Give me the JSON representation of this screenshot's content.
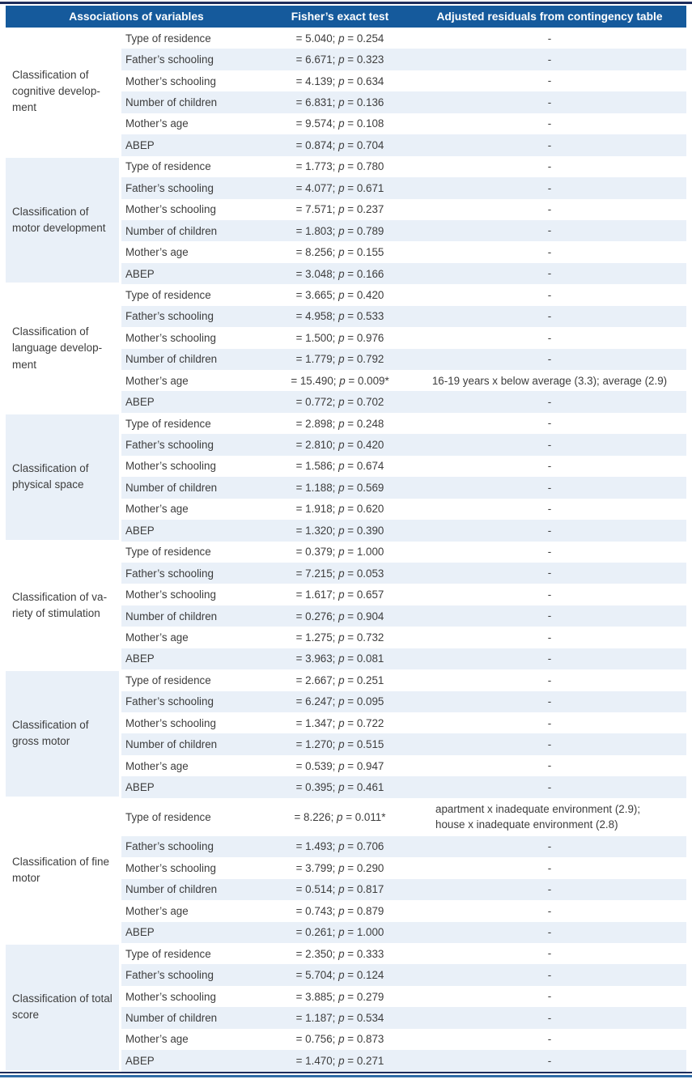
{
  "header": {
    "col_variables": "Associations of variables",
    "col_fisher": "Fisher’s exact test",
    "col_residuals": "Adjusted residuals from contingency table"
  },
  "labels": {
    "p_symbol": "p"
  },
  "colors": {
    "header_bg": "#155a9c",
    "row_stripe": "#e9f0f8",
    "rule_dark": "#1e2d5c",
    "rule_blue": "#2e6ba6",
    "body_text": "#3d3d3d",
    "header_text": "#ffffff"
  },
  "groups": [
    {
      "label": "Classification of cognitive develop­ment",
      "rows": [
        {
          "variable": "Type of residence",
          "stat": "= 5.040;",
          "p": "= 0.254",
          "residual": "-"
        },
        {
          "variable": "Father’s schooling",
          "stat": "= 6.671;",
          "p": "= 0.323",
          "residual": "-"
        },
        {
          "variable": "Mother’s schooling",
          "stat": "= 4.139;",
          "p": "= 0.634",
          "residual": "-"
        },
        {
          "variable": "Number of children",
          "stat": "= 6.831;",
          "p": "= 0.136",
          "residual": "-"
        },
        {
          "variable": "Mother’s age",
          "stat": "= 9.574;",
          "p": "= 0.108",
          "residual": "-"
        },
        {
          "variable": "ABEP",
          "stat": "= 0.874;",
          "p": "= 0.704",
          "residual": "-"
        }
      ]
    },
    {
      "label": "Classification of motor develop­ment",
      "rows": [
        {
          "variable": "Type of residence",
          "stat": "= 1.773;",
          "p": "= 0.780",
          "residual": "-"
        },
        {
          "variable": "Father’s schooling",
          "stat": "= 4.077;",
          "p": "= 0.671",
          "residual": "-"
        },
        {
          "variable": "Mother’s schooling",
          "stat": "= 7.571;",
          "p": "= 0.237",
          "residual": "-"
        },
        {
          "variable": "Number of children",
          "stat": "= 1.803;",
          "p": "= 0.789",
          "residual": "-"
        },
        {
          "variable": "Mother’s age",
          "stat": "= 8.256;",
          "p": "= 0.155",
          "residual": "-"
        },
        {
          "variable": "ABEP",
          "stat": "= 3.048;",
          "p": "= 0.166",
          "residual": "-"
        }
      ]
    },
    {
      "label": "Classification of language develop­ment",
      "rows": [
        {
          "variable": "Type of residence",
          "stat": "= 3.665;",
          "p": "= 0.420",
          "residual": "-"
        },
        {
          "variable": "Father’s schooling",
          "stat": "= 4.958;",
          "p": "= 0.533",
          "residual": "-"
        },
        {
          "variable": "Mother’s schooling",
          "stat": "= 1.500;",
          "p": "= 0.976",
          "residual": "-"
        },
        {
          "variable": "Number of children",
          "stat": "= 1.779;",
          "p": "= 0.792",
          "residual": "-"
        },
        {
          "variable": "Mother’s age",
          "stat": "= 15.490;",
          "p": "= 0.009*",
          "residual": "16-19 years x below average (3.3); average (2.9)"
        },
        {
          "variable": "ABEP",
          "stat": "= 0.772;",
          "p": "= 0.702",
          "residual": "-"
        }
      ]
    },
    {
      "label": "Classification of physical space",
      "rows": [
        {
          "variable": "Type of residence",
          "stat": "= 2.898;",
          "p": "= 0.248",
          "residual": "-"
        },
        {
          "variable": "Father’s schooling",
          "stat": "= 2.810;",
          "p": "= 0.420",
          "residual": "-"
        },
        {
          "variable": "Mother’s schooling",
          "stat": "= 1.586;",
          "p": "= 0.674",
          "residual": "-"
        },
        {
          "variable": "Number of children",
          "stat": "= 1.188;",
          "p": "= 0.569",
          "residual": "-"
        },
        {
          "variable": "Mother’s age",
          "stat": "= 1.918;",
          "p": "= 0.620",
          "residual": "-"
        },
        {
          "variable": "ABEP",
          "stat": "= 1.320;",
          "p": "= 0.390",
          "residual": "-"
        }
      ]
    },
    {
      "label": "Classification of va­riety of stimulation",
      "rows": [
        {
          "variable": "Type of residence",
          "stat": "= 0.379;",
          "p": "= 1.000",
          "residual": "-"
        },
        {
          "variable": "Father’s schooling",
          "stat": "= 7.215;",
          "p": "= 0.053",
          "residual": "-"
        },
        {
          "variable": "Mother’s schooling",
          "stat": "= 1.617;",
          "p": "= 0.657",
          "residual": "-"
        },
        {
          "variable": "Number of children",
          "stat": "= 0.276;",
          "p": "= 0.904",
          "residual": "-"
        },
        {
          "variable": "Mother’s age",
          "stat": "= 1.275;",
          "p": "= 0.732",
          "residual": "-"
        },
        {
          "variable": "ABEP",
          "stat": "= 3.963;",
          "p": "= 0.081",
          "residual": "-"
        }
      ]
    },
    {
      "label": "Classification of gross motor",
      "rows": [
        {
          "variable": "Type of residence",
          "stat": "= 2.667;",
          "p": "= 0.251",
          "residual": "-"
        },
        {
          "variable": "Father’s schooling",
          "stat": "= 6.247;",
          "p": "= 0.095",
          "residual": "-"
        },
        {
          "variable": "Mother’s schooling",
          "stat": "= 1.347;",
          "p": "= 0.722",
          "residual": "-"
        },
        {
          "variable": "Number of children",
          "stat": "= 1.270;",
          "p": "= 0.515",
          "residual": "-"
        },
        {
          "variable": "Mother’s age",
          "stat": "= 0.539;",
          "p": "= 0.947",
          "residual": "-"
        },
        {
          "variable": "ABEP",
          "stat": "= 0.395;",
          "p": "= 0.461",
          "residual": "-"
        }
      ]
    },
    {
      "label": "Classification of fine motor",
      "rows": [
        {
          "variable": "Type of residence",
          "stat": "= 8.226;",
          "p": "= 0.011*",
          "residual": "apartment x inadequate environment (2.9);\nhouse x inadequate environment (2.8)",
          "residual_align": "left",
          "tall": true
        },
        {
          "variable": "Father’s schooling",
          "stat": "= 1.493;",
          "p": "= 0.706",
          "residual": "-"
        },
        {
          "variable": "Mother’s schooling",
          "stat": "= 3.799;",
          "p": "= 0.290",
          "residual": "-"
        },
        {
          "variable": "Number of children",
          "stat": "= 0.514;",
          "p": "= 0.817",
          "residual": "-"
        },
        {
          "variable": "Mother’s age",
          "stat": "= 0.743;",
          "p": "= 0.879",
          "residual": "-"
        },
        {
          "variable": "ABEP",
          "stat": "= 0.261;",
          "p": "= 1.000",
          "residual": "-"
        }
      ]
    },
    {
      "label": "Classification of total score",
      "rows": [
        {
          "variable": "Type of residence",
          "stat": "= 2.350;",
          "p": "= 0.333",
          "residual": "-"
        },
        {
          "variable": "Father’s schooling",
          "stat": "= 5.704;",
          "p": "= 0.124",
          "residual": "-"
        },
        {
          "variable": "Mother’s schooling",
          "stat": "= 3.885;",
          "p": "= 0.279",
          "residual": "-"
        },
        {
          "variable": "Number of children",
          "stat": "= 1.187;",
          "p": "= 0.534",
          "residual": "-"
        },
        {
          "variable": "Mother’s age",
          "stat": "= 0.756;",
          "p": "= 0.873",
          "residual": "-"
        },
        {
          "variable": "ABEP",
          "stat": "= 1.470;",
          "p": "= 0.271",
          "residual": "-"
        }
      ]
    }
  ]
}
